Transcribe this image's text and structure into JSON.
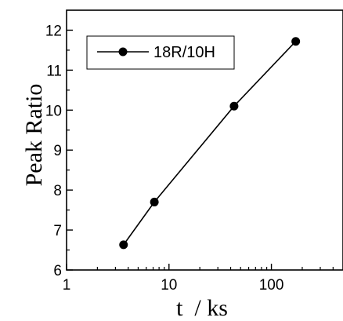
{
  "chart_data": {
    "type": "line",
    "xscale": "log",
    "xlabel": "t  / ks",
    "ylabel": "Peak Ratio",
    "xlim": [
      1,
      500
    ],
    "ylim": [
      6,
      12.5
    ],
    "xticks": [
      1,
      10,
      100
    ],
    "xtick_labels": [
      "1",
      "10",
      "100"
    ],
    "yticks": [
      6,
      7,
      8,
      9,
      10,
      11,
      12
    ],
    "ytick_labels": [
      "6",
      "7",
      "8",
      "9",
      "10",
      "11",
      "12"
    ],
    "grid": false,
    "legend": "top-left",
    "series": [
      {
        "name": "18R/10H",
        "color": "#000000",
        "marker": "circle",
        "x": [
          3.6,
          7.2,
          43.2,
          172.8
        ],
        "y": [
          6.63,
          7.7,
          10.1,
          11.72
        ]
      }
    ]
  }
}
